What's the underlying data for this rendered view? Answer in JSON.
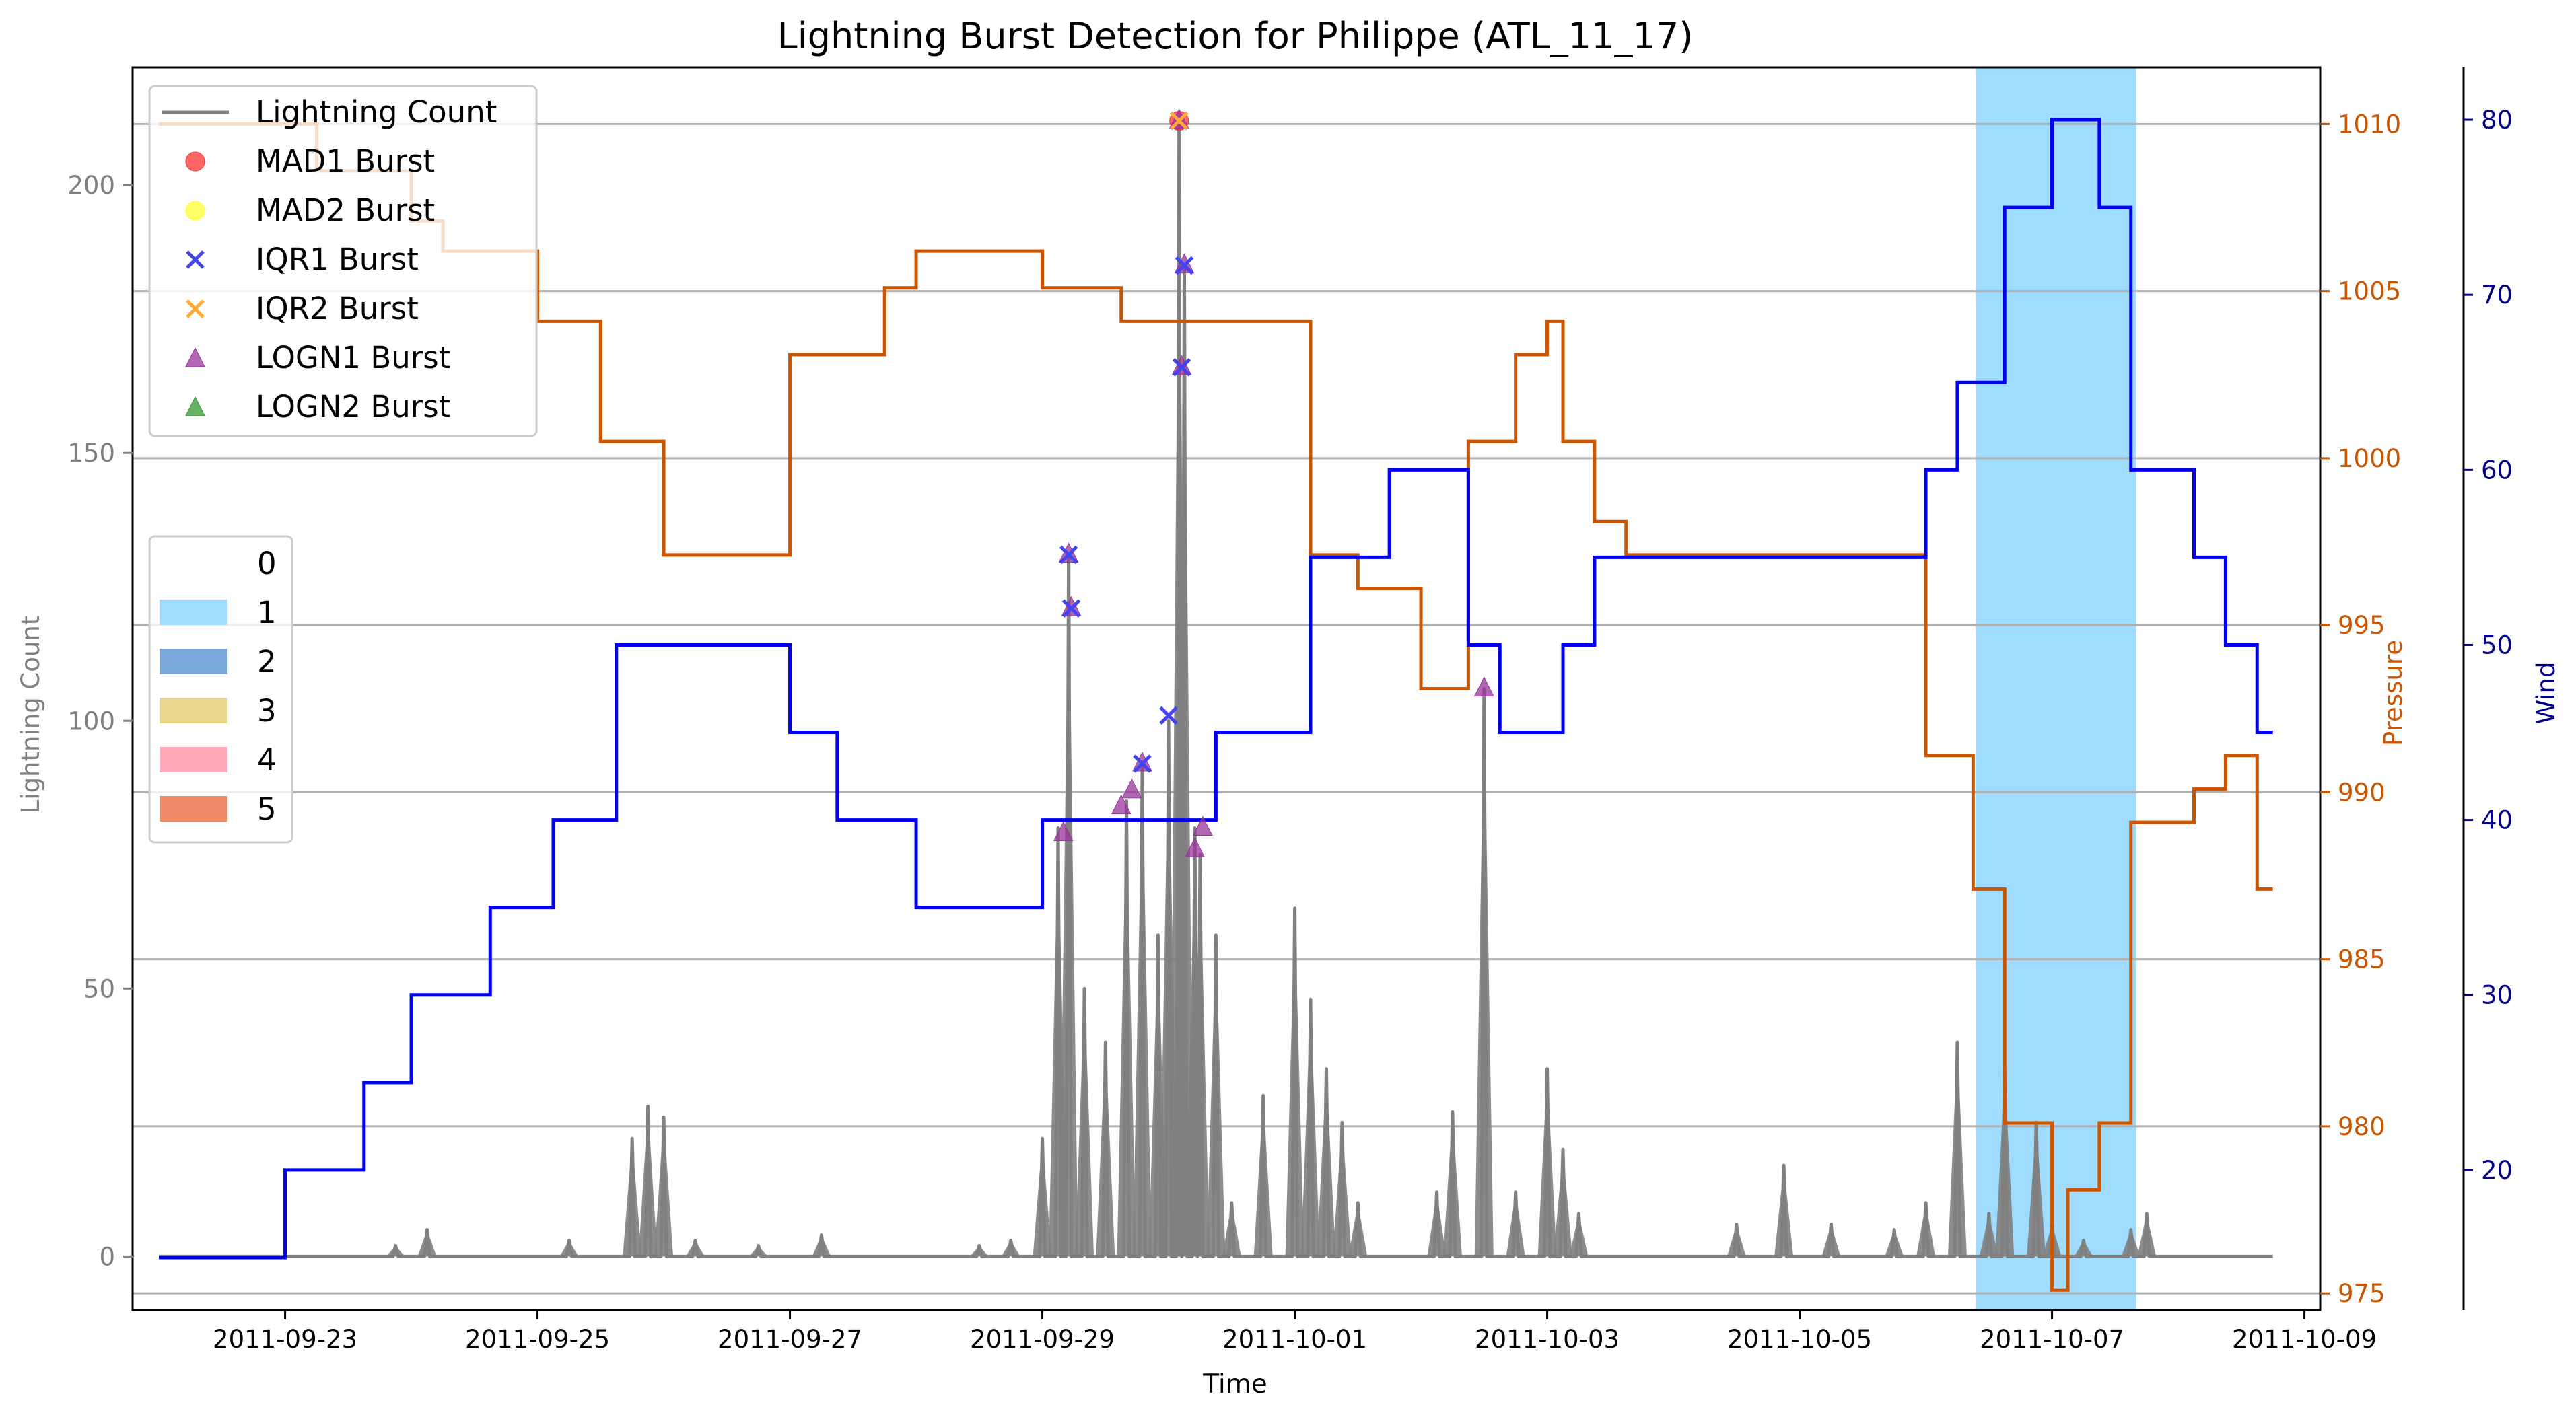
{
  "chart_data": {
    "type": "line",
    "title": "Lightning Burst Detection for Philippe (ATL_11_17)",
    "xlabel": "Time",
    "ylabel_left": "Lightning Count",
    "ylabel_pressure": "Pressure",
    "ylabel_wind": "Wind",
    "x_range": [
      "2011-09-21T19:00",
      "2011-10-09T03:00"
    ],
    "x_ticks": [
      "2011-09-23",
      "2011-09-25",
      "2011-09-27",
      "2011-09-29",
      "2011-10-01",
      "2011-10-03",
      "2011-10-05",
      "2011-10-07",
      "2011-10-09"
    ],
    "ylim_left": [
      -10,
      222
    ],
    "yticks_left": [
      0,
      50,
      100,
      150,
      200
    ],
    "ylim_pressure": [
      974.5,
      1011.7
    ],
    "yticks_pressure": [
      975,
      980,
      985,
      990,
      995,
      1000,
      1005,
      1010
    ],
    "ylim_wind": [
      12,
      83
    ],
    "yticks_wind": [
      20,
      30,
      40,
      50,
      60,
      70,
      80
    ],
    "grid": true,
    "colors": {
      "lightning": "#808080",
      "pressure": "#cc5500",
      "wind": "#0000ee",
      "mad1": "#ff3333",
      "mad2": "#ffff33",
      "iqr1": "#4444ee",
      "iqr2": "#ffaa33",
      "logn1": "#993399",
      "logn2": "#339933",
      "category_1": "#a0dcff"
    },
    "legend_series": [
      {
        "label": "Lightning Count",
        "marker": "line",
        "color": "#808080"
      },
      {
        "label": "MAD1 Burst",
        "marker": "circle",
        "color": "#ff3333"
      },
      {
        "label": "MAD2 Burst",
        "marker": "circle",
        "color": "#ffff33"
      },
      {
        "label": "IQR1 Burst",
        "marker": "x",
        "color": "#4444ee"
      },
      {
        "label": "IQR2 Burst",
        "marker": "x",
        "color": "#ffaa33"
      },
      {
        "label": "LOGN1 Burst",
        "marker": "triangle",
        "color": "#993399"
      },
      {
        "label": "LOGN2 Burst",
        "marker": "triangle",
        "color": "#339933"
      }
    ],
    "legend_categories": [
      {
        "label": "0",
        "color": "#ffffff"
      },
      {
        "label": "1",
        "color": "#a0dcff"
      },
      {
        "label": "2",
        "color": "#79a7dc"
      },
      {
        "label": "3",
        "color": "#ead88c"
      },
      {
        "label": "4",
        "color": "#ffa8b8"
      },
      {
        "label": "5",
        "color": "#f0896a"
      }
    ],
    "legend_placement": "upper-left",
    "category_spans": [
      {
        "category": 1,
        "start": "2011-10-06T09:30",
        "end": "2011-10-07T16:00"
      }
    ],
    "pressure": [
      [
        "2011-09-22T00:00",
        1010
      ],
      [
        "2011-09-23T06:00",
        1008.6
      ],
      [
        "2011-09-24T00:00",
        1007.1
      ],
      [
        "2011-09-24T06:00",
        1006.2
      ],
      [
        "2011-09-25T00:00",
        1004.1
      ],
      [
        "2011-09-25T12:00",
        1000.5
      ],
      [
        "2011-09-26T00:00",
        997.1
      ],
      [
        "2011-09-27T00:00",
        1003.1
      ],
      [
        "2011-09-27T18:00",
        1005.1
      ],
      [
        "2011-09-28T00:00",
        1006.2
      ],
      [
        "2011-09-29T00:00",
        1005.1
      ],
      [
        "2011-09-29T15:00",
        1004.1
      ],
      [
        "2011-10-01T03:00",
        997.1
      ],
      [
        "2011-10-01T12:00",
        996.1
      ],
      [
        "2011-10-02T00:00",
        993.1
      ],
      [
        "2011-10-02T09:00",
        1000.5
      ],
      [
        "2011-10-02T18:00",
        1003.1
      ],
      [
        "2011-10-03T00:00",
        1004.1
      ],
      [
        "2011-10-03T03:00",
        1000.5
      ],
      [
        "2011-10-03T09:00",
        998.1
      ],
      [
        "2011-10-03T15:00",
        997.1
      ],
      [
        "2011-10-06T00:00",
        991.1
      ],
      [
        "2011-10-06T09:00",
        987.1
      ],
      [
        "2011-10-06T15:00",
        980.1
      ],
      [
        "2011-10-07T00:00",
        975.1
      ],
      [
        "2011-10-07T03:00",
        978.1
      ],
      [
        "2011-10-07T09:00",
        980.1
      ],
      [
        "2011-10-07T15:00",
        989.1
      ],
      [
        "2011-10-08T03:00",
        990.1
      ],
      [
        "2011-10-08T09:00",
        991.1
      ],
      [
        "2011-10-08T15:00",
        987.1
      ],
      [
        "2011-10-08T18:00",
        987.1
      ]
    ],
    "wind": [
      [
        "2011-09-22T00:00",
        15
      ],
      [
        "2011-09-23T00:00",
        20
      ],
      [
        "2011-09-23T15:00",
        25
      ],
      [
        "2011-09-24T00:00",
        30
      ],
      [
        "2011-09-24T15:00",
        35
      ],
      [
        "2011-09-25T03:00",
        40
      ],
      [
        "2011-09-25T15:00",
        50
      ],
      [
        "2011-09-27T00:00",
        45
      ],
      [
        "2011-09-27T09:00",
        40
      ],
      [
        "2011-09-28T00:00",
        35
      ],
      [
        "2011-09-29T00:00",
        40
      ],
      [
        "2011-09-30T09:00",
        45
      ],
      [
        "2011-10-01T03:00",
        55
      ],
      [
        "2011-10-01T18:00",
        60
      ],
      [
        "2011-10-02T09:00",
        50
      ],
      [
        "2011-10-02T15:00",
        45
      ],
      [
        "2011-10-03T03:00",
        50
      ],
      [
        "2011-10-03T09:00",
        55
      ],
      [
        "2011-10-06T00:00",
        60
      ],
      [
        "2011-10-06T06:00",
        65
      ],
      [
        "2011-10-06T15:00",
        75
      ],
      [
        "2011-10-07T00:00",
        80
      ],
      [
        "2011-10-07T09:00",
        75
      ],
      [
        "2011-10-07T15:00",
        60
      ],
      [
        "2011-10-08T03:00",
        55
      ],
      [
        "2011-10-08T09:00",
        50
      ],
      [
        "2011-10-08T15:00",
        45
      ],
      [
        "2011-10-08T18:00",
        45
      ]
    ],
    "lightning_peaks": [
      [
        "2011-09-23T21:00",
        2
      ],
      [
        "2011-09-24T03:00",
        5
      ],
      [
        "2011-09-25T06:00",
        3
      ],
      [
        "2011-09-25T18:00",
        22
      ],
      [
        "2011-09-25T21:00",
        28
      ],
      [
        "2011-09-26T00:00",
        26
      ],
      [
        "2011-09-26T06:00",
        3
      ],
      [
        "2011-09-26T18:00",
        2
      ],
      [
        "2011-09-27T06:00",
        4
      ],
      [
        "2011-09-28T12:00",
        2
      ],
      [
        "2011-09-28T18:00",
        3
      ],
      [
        "2011-09-29T00:00",
        22
      ],
      [
        "2011-09-29T03:00",
        80
      ],
      [
        "2011-09-29T05:00",
        131
      ],
      [
        "2011-09-29T08:00",
        50
      ],
      [
        "2011-09-29T12:00",
        40
      ],
      [
        "2011-09-29T16:00",
        85
      ],
      [
        "2011-09-29T19:00",
        92
      ],
      [
        "2011-09-29T22:00",
        60
      ],
      [
        "2011-09-30T00:00",
        100
      ],
      [
        "2011-09-30T02:00",
        211
      ],
      [
        "2011-09-30T03:00",
        185
      ],
      [
        "2011-09-30T05:00",
        80
      ],
      [
        "2011-09-30T06:00",
        75
      ],
      [
        "2011-09-30T09:00",
        60
      ],
      [
        "2011-09-30T12:00",
        10
      ],
      [
        "2011-09-30T18:00",
        30
      ],
      [
        "2011-10-01T00:00",
        65
      ],
      [
        "2011-10-01T03:00",
        48
      ],
      [
        "2011-10-01T06:00",
        35
      ],
      [
        "2011-10-01T09:00",
        25
      ],
      [
        "2011-10-01T12:00",
        10
      ],
      [
        "2011-10-02T03:00",
        12
      ],
      [
        "2011-10-02T06:00",
        27
      ],
      [
        "2011-10-02T12:00",
        106
      ],
      [
        "2011-10-02T18:00",
        12
      ],
      [
        "2011-10-03T00:00",
        35
      ],
      [
        "2011-10-03T03:00",
        20
      ],
      [
        "2011-10-03T06:00",
        8
      ],
      [
        "2011-10-04T12:00",
        6
      ],
      [
        "2011-10-04T21:00",
        17
      ],
      [
        "2011-10-05T06:00",
        6
      ],
      [
        "2011-10-05T18:00",
        5
      ],
      [
        "2011-10-06T00:00",
        10
      ],
      [
        "2011-10-06T06:00",
        40
      ],
      [
        "2011-10-06T12:00",
        8
      ],
      [
        "2011-10-06T15:00",
        35
      ],
      [
        "2011-10-06T21:00",
        25
      ],
      [
        "2011-10-07T00:00",
        6
      ],
      [
        "2011-10-07T06:00",
        3
      ],
      [
        "2011-10-07T15:00",
        5
      ],
      [
        "2011-10-07T18:00",
        8
      ]
    ],
    "bursts_iqr1": [
      [
        "2011-09-29T05:00",
        131
      ],
      [
        "2011-09-29T05:30",
        121
      ],
      [
        "2011-09-29T19:00",
        92
      ],
      [
        "2011-09-30T00:00",
        101
      ],
      [
        "2011-09-30T02:00",
        212
      ],
      [
        "2011-09-30T02:30",
        166
      ],
      [
        "2011-09-30T03:00",
        185
      ]
    ],
    "bursts_logn1": [
      [
        "2011-09-29T04:00",
        79
      ],
      [
        "2011-09-29T05:00",
        131
      ],
      [
        "2011-09-29T05:30",
        121
      ],
      [
        "2011-09-29T15:00",
        84
      ],
      [
        "2011-09-29T17:00",
        87
      ],
      [
        "2011-09-29T19:00",
        92
      ],
      [
        "2011-09-30T02:00",
        212
      ],
      [
        "2011-09-30T02:30",
        166
      ],
      [
        "2011-09-30T03:00",
        185
      ],
      [
        "2011-09-30T05:00",
        76
      ],
      [
        "2011-09-30T06:30",
        80
      ],
      [
        "2011-10-02T12:00",
        106
      ]
    ],
    "bursts_iqr2": [
      [
        "2011-09-30T02:00",
        212
      ]
    ],
    "bursts_mad1": [
      [
        "2011-09-30T02:00",
        212
      ]
    ]
  }
}
